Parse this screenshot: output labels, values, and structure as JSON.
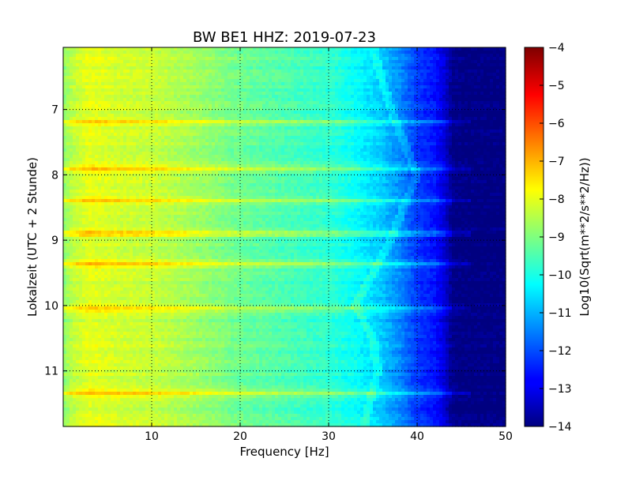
{
  "chart_data": {
    "type": "heatmap",
    "title": "BW BE1 HHZ: 2019-07-23",
    "xlabel": "Frequency [Hz]",
    "ylabel": "Lokalzeit (UTC + 2 Stunde)",
    "xlim": [
      0,
      50
    ],
    "ylim": [
      6.05,
      11.85
    ],
    "y_inverted": true,
    "x_ticks": [
      10,
      20,
      30,
      40,
      50
    ],
    "y_ticks": [
      7,
      8,
      9,
      10,
      11
    ],
    "grid": true,
    "colormap": "jet",
    "colorbar": {
      "label": "Log10(Sqrt(m**2/s**2/Hz))",
      "min": -14,
      "max": -4,
      "ticks": [
        -4,
        -5,
        -6,
        -7,
        -8,
        -9,
        -10,
        -11,
        -12,
        -13,
        -14
      ]
    },
    "spectrum_profile": {
      "frequency_hz": [
        0,
        1,
        3,
        6,
        10,
        15,
        20,
        25,
        30,
        33,
        36,
        38,
        40,
        42,
        43,
        44,
        45,
        50
      ],
      "log10_amplitude": [
        -8.9,
        -8.4,
        -8.0,
        -8.2,
        -8.3,
        -8.7,
        -9.2,
        -9.5,
        -9.8,
        -10.2,
        -10.8,
        -11.4,
        -12.2,
        -12.6,
        -13.1,
        -13.9,
        -14.0,
        -14.0
      ]
    },
    "bright_bands_hours": [
      7.2,
      7.9,
      8.4,
      8.9,
      9.35,
      10.05,
      11.35
    ],
    "drift_line": {
      "time_h": [
        6.05,
        7.0,
        8.0,
        9.0,
        10.0,
        10.5,
        11.0,
        11.85
      ],
      "frequency_hz": [
        35,
        37,
        40,
        37,
        33,
        35,
        35.5,
        34
      ]
    }
  }
}
